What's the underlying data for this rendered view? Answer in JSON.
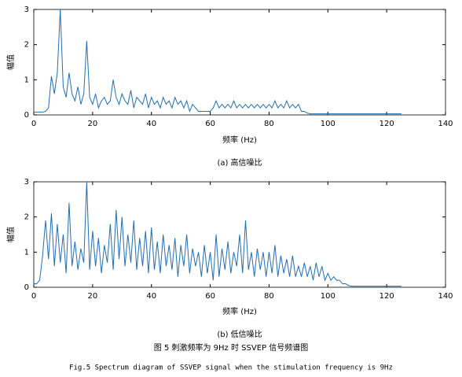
{
  "chart_data": [
    {
      "type": "line",
      "caption": "(a) 高信噪比",
      "xlabel": "频率 (Hz)",
      "ylabel": "幅值",
      "xlim": [
        0,
        140
      ],
      "ylim": [
        0,
        3
      ],
      "xticks": [
        0,
        20,
        40,
        60,
        80,
        100,
        120,
        140
      ],
      "yticks": [
        0,
        1,
        2,
        3
      ],
      "x": [
        0,
        1,
        2,
        3,
        4,
        5,
        6,
        7,
        8,
        9,
        10,
        11,
        12,
        13,
        14,
        15,
        16,
        17,
        18,
        19,
        20,
        21,
        22,
        23,
        24,
        25,
        26,
        27,
        28,
        29,
        30,
        31,
        32,
        33,
        34,
        35,
        36,
        37,
        38,
        39,
        40,
        41,
        42,
        43,
        44,
        45,
        46,
        47,
        48,
        49,
        50,
        51,
        52,
        53,
        54,
        55,
        56,
        57,
        58,
        59,
        60,
        61,
        62,
        63,
        64,
        65,
        66,
        67,
        68,
        69,
        70,
        71,
        72,
        73,
        74,
        75,
        76,
        77,
        78,
        79,
        80,
        81,
        82,
        83,
        84,
        85,
        86,
        87,
        88,
        89,
        90,
        91,
        92,
        93,
        94,
        95,
        96,
        97,
        98,
        99,
        100,
        101,
        102,
        103,
        104,
        105,
        106,
        107,
        108,
        109,
        110,
        111,
        112,
        113,
        114,
        115,
        116,
        117,
        118,
        119,
        120,
        121,
        122,
        123,
        124,
        125
      ],
      "series": [
        {
          "color": "#1f6fb4",
          "values": [
            0.08,
            0.08,
            0.08,
            0.08,
            0.1,
            0.2,
            1.1,
            0.6,
            1.2,
            3.0,
            0.8,
            0.5,
            1.2,
            0.6,
            0.4,
            0.8,
            0.3,
            0.6,
            2.1,
            0.5,
            0.3,
            0.6,
            0.2,
            0.4,
            0.5,
            0.3,
            0.4,
            1.0,
            0.5,
            0.3,
            0.6,
            0.4,
            0.3,
            0.7,
            0.2,
            0.5,
            0.4,
            0.3,
            0.6,
            0.2,
            0.5,
            0.3,
            0.4,
            0.2,
            0.5,
            0.3,
            0.4,
            0.2,
            0.5,
            0.3,
            0.4,
            0.2,
            0.4,
            0.1,
            0.3,
            0.2,
            0.1,
            0.1,
            0.1,
            0.1,
            0.1,
            0.2,
            0.4,
            0.2,
            0.3,
            0.2,
            0.3,
            0.2,
            0.4,
            0.2,
            0.3,
            0.2,
            0.3,
            0.2,
            0.3,
            0.2,
            0.3,
            0.2,
            0.3,
            0.2,
            0.3,
            0.2,
            0.4,
            0.2,
            0.3,
            0.2,
            0.4,
            0.2,
            0.3,
            0.2,
            0.3,
            0.1,
            0.1,
            0.05,
            0.03,
            0.03,
            0.03,
            0.03,
            0.03,
            0.03,
            0.03,
            0.03,
            0.03,
            0.03,
            0.03,
            0.03,
            0.03,
            0.03,
            0.03,
            0.03,
            0.03,
            0.03,
            0.03,
            0.03,
            0.03,
            0.03,
            0.03,
            0.03,
            0.03,
            0.03,
            0.03,
            0.03,
            0.03,
            0.03,
            0.03,
            0.03
          ]
        }
      ]
    },
    {
      "type": "line",
      "caption": "(b) 低信噪比",
      "xlabel": "频率 (Hz)",
      "ylabel": "幅值",
      "xlim": [
        0,
        140
      ],
      "ylim": [
        0,
        3
      ],
      "xticks": [
        0,
        20,
        40,
        60,
        80,
        100,
        120,
        140
      ],
      "yticks": [
        0,
        1,
        2,
        3
      ],
      "x": [
        0,
        1,
        2,
        3,
        4,
        5,
        6,
        7,
        8,
        9,
        10,
        11,
        12,
        13,
        14,
        15,
        16,
        17,
        18,
        19,
        20,
        21,
        22,
        23,
        24,
        25,
        26,
        27,
        28,
        29,
        30,
        31,
        32,
        33,
        34,
        35,
        36,
        37,
        38,
        39,
        40,
        41,
        42,
        43,
        44,
        45,
        46,
        47,
        48,
        49,
        50,
        51,
        52,
        53,
        54,
        55,
        56,
        57,
        58,
        59,
        60,
        61,
        62,
        63,
        64,
        65,
        66,
        67,
        68,
        69,
        70,
        71,
        72,
        73,
        74,
        75,
        76,
        77,
        78,
        79,
        80,
        81,
        82,
        83,
        84,
        85,
        86,
        87,
        88,
        89,
        90,
        91,
        92,
        93,
        94,
        95,
        96,
        97,
        98,
        99,
        100,
        101,
        102,
        103,
        104,
        105,
        106,
        107,
        108,
        109,
        110,
        111,
        112,
        113,
        114,
        115,
        116,
        117,
        118,
        119,
        120,
        121,
        122,
        123,
        124,
        125
      ],
      "series": [
        {
          "color": "#1f6fb4",
          "values": [
            0.1,
            0.1,
            0.2,
            0.9,
            1.9,
            0.8,
            2.1,
            0.6,
            1.8,
            0.7,
            1.5,
            0.4,
            2.4,
            0.6,
            1.3,
            0.5,
            1.1,
            0.7,
            3.0,
            0.5,
            1.6,
            0.6,
            1.4,
            0.4,
            1.2,
            0.7,
            1.8,
            0.5,
            2.2,
            0.8,
            2.0,
            0.6,
            1.5,
            0.7,
            1.9,
            0.5,
            1.4,
            0.6,
            1.6,
            0.4,
            1.7,
            0.5,
            1.3,
            0.4,
            1.5,
            0.6,
            1.2,
            0.5,
            1.4,
            0.3,
            1.2,
            0.6,
            1.5,
            0.4,
            1.1,
            0.6,
            1.0,
            0.3,
            1.2,
            0.4,
            1.0,
            0.2,
            1.5,
            0.3,
            1.1,
            0.5,
            1.3,
            0.4,
            1.0,
            0.6,
            1.5,
            0.4,
            1.9,
            0.5,
            1.0,
            0.3,
            1.1,
            0.5,
            1.0,
            0.3,
            1.0,
            0.4,
            1.2,
            0.3,
            0.9,
            0.4,
            0.8,
            0.3,
            0.9,
            0.3,
            0.6,
            0.3,
            0.7,
            0.3,
            0.6,
            0.2,
            0.7,
            0.3,
            0.6,
            0.2,
            0.4,
            0.2,
            0.3,
            0.2,
            0.2,
            0.1,
            0.1,
            0.05,
            0.03,
            0.03,
            0.03,
            0.03,
            0.03,
            0.03,
            0.03,
            0.03,
            0.03,
            0.03,
            0.03,
            0.03,
            0.03,
            0.03,
            0.03,
            0.03,
            0.03,
            0.03
          ]
        }
      ]
    }
  ],
  "figure": {
    "caption_cn": "图 5 刺激频率为 9Hz 时 SSVEP 信号频谱图",
    "caption_en": "Fig.5 Spectrum diagram of SSVEP signal when the stimulation frequency is 9Hz"
  }
}
